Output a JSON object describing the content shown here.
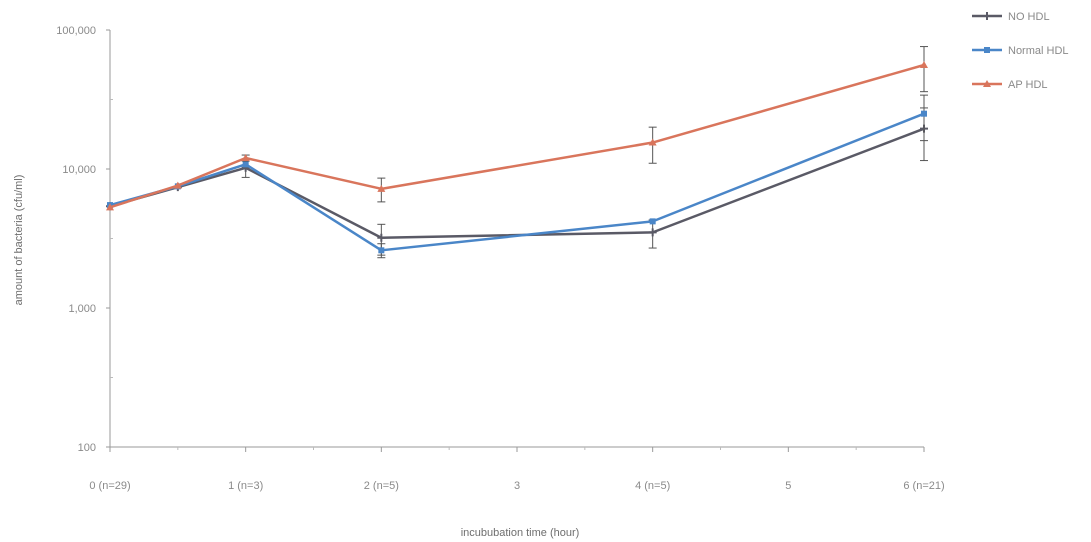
{
  "chart_data": {
    "type": "line",
    "title": "",
    "xlabel": "incububation time (hour)",
    "ylabel": "amount of bacteria (cfu/ml)",
    "y_scale": "log",
    "ylim": [
      100,
      100000
    ],
    "y_ticks": [
      {
        "value": 100,
        "label": "100"
      },
      {
        "value": 1000,
        "label": "1,000"
      },
      {
        "value": 10000,
        "label": "10,000"
      },
      {
        "value": 100000,
        "label": "100,000"
      }
    ],
    "xlim": [
      0,
      6
    ],
    "x_ticks": [
      {
        "value": 0,
        "label": "0 (n=29)"
      },
      {
        "value": 1,
        "label": "1 (n=3)"
      },
      {
        "value": 2,
        "label": "2 (n=5)"
      },
      {
        "value": 3,
        "label": "3"
      },
      {
        "value": 4,
        "label": "4 (n=5)"
      },
      {
        "value": 5,
        "label": "5"
      },
      {
        "value": 6,
        "label": "6 (n=21)"
      }
    ],
    "grid": false,
    "legend_position": "top-right",
    "series": [
      {
        "name": "NO HDL",
        "color": "#5a5a66",
        "marker": "plus",
        "x": [
          0,
          0.5,
          1,
          2,
          4,
          6
        ],
        "y": [
          5400,
          7400,
          10200,
          3200,
          3500,
          19500
        ],
        "err": [
          0,
          0,
          1500,
          800,
          800,
          8000
        ]
      },
      {
        "name": "Normal HDL",
        "color": "#4a86c8",
        "marker": "square",
        "x": [
          0,
          0.5,
          1,
          2,
          4,
          6
        ],
        "y": [
          5500,
          7500,
          10800,
          2600,
          4200,
          25000
        ],
        "err": [
          0,
          0,
          0,
          300,
          0,
          9000
        ]
      },
      {
        "name": "AP HDL",
        "color": "#d9755c",
        "marker": "triangle",
        "x": [
          0,
          0.5,
          1,
          2,
          4,
          6
        ],
        "y": [
          5300,
          7600,
          12000,
          7200,
          15500,
          56000
        ],
        "err": [
          0,
          0,
          600,
          1400,
          4500,
          20000
        ]
      }
    ]
  }
}
